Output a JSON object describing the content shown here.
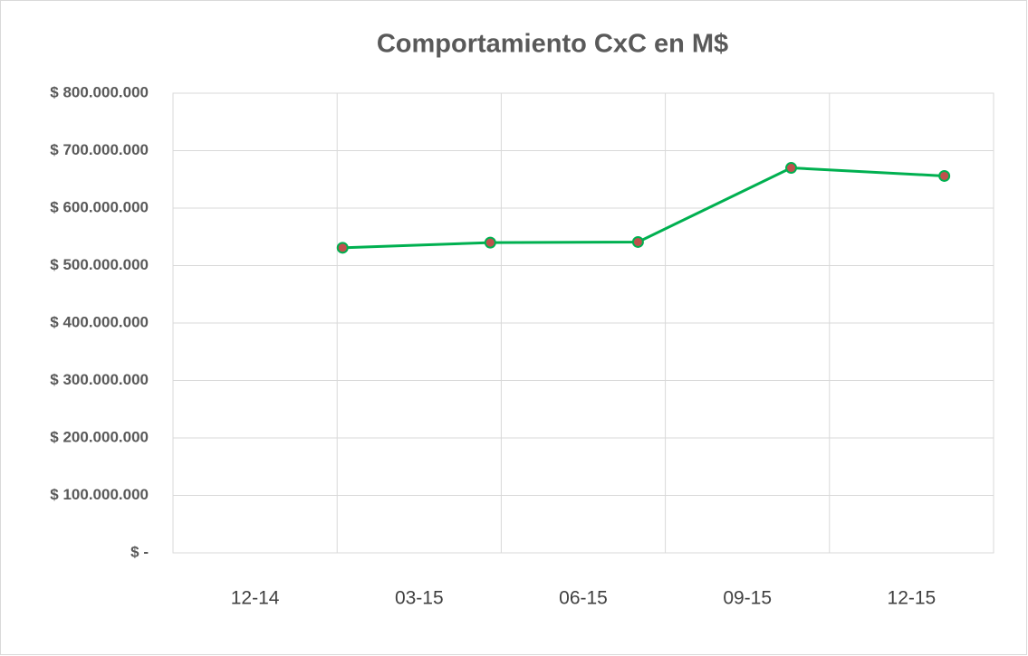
{
  "chart_data": {
    "type": "line",
    "title": "Comportamiento CxC en M$",
    "x": [
      3.1,
      5.8,
      8.5,
      11.3,
      14.1
    ],
    "series": [
      {
        "name": "CxC",
        "color": "#00b050",
        "marker_color": "#c0504d",
        "values": [
          531000000,
          540000000,
          541000000,
          670000000,
          656000000
        ]
      }
    ],
    "xlim": [
      0,
      15
    ],
    "xticks": [
      {
        "value": 0,
        "label": "12-14"
      },
      {
        "value": 3,
        "label": "03-15"
      },
      {
        "value": 6,
        "label": "06-15"
      },
      {
        "value": 9,
        "label": "09-15"
      },
      {
        "value": 12,
        "label": "12-15"
      }
    ],
    "ylim": [
      0,
      800000000
    ],
    "yticks": [
      {
        "value": 0,
        "label": "$ -"
      },
      {
        "value": 100000000,
        "label": "$ 100.000.000"
      },
      {
        "value": 200000000,
        "label": "$ 200.000.000"
      },
      {
        "value": 300000000,
        "label": "$ 300.000.000"
      },
      {
        "value": 400000000,
        "label": "$ 400.000.000"
      },
      {
        "value": 500000000,
        "label": "$ 500.000.000"
      },
      {
        "value": 600000000,
        "label": "$ 600.000.000"
      },
      {
        "value": 700000000,
        "label": "$ 700.000.000"
      },
      {
        "value": 800000000,
        "label": "$ 800.000.000"
      }
    ],
    "grid": true
  }
}
